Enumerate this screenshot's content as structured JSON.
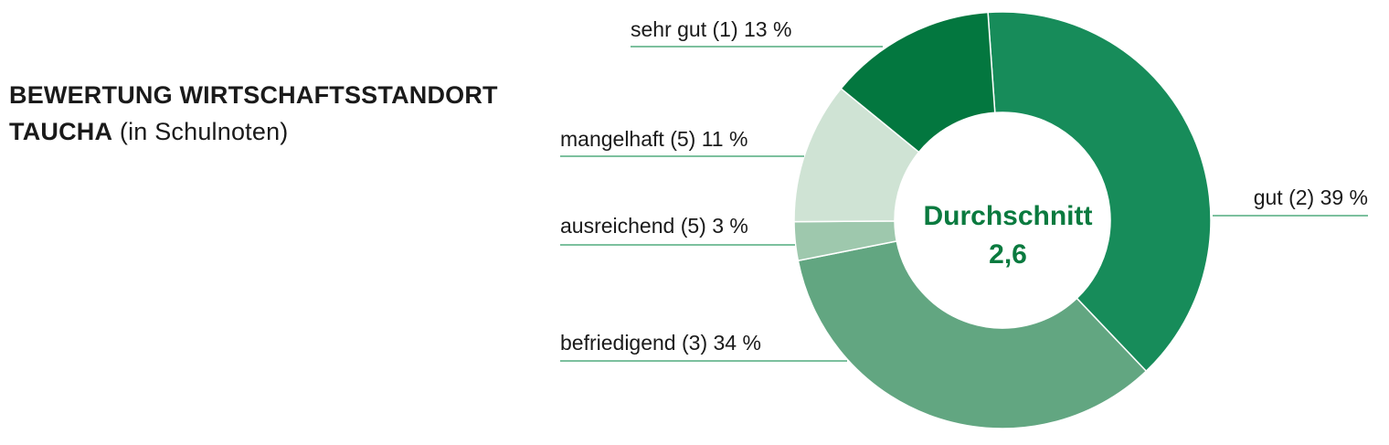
{
  "title": {
    "line1": "BEWERTUNG WIRTSCHAFTSSTANDORT",
    "line2_bold": "TAUCHA",
    "line2_normal": "(in Schulnoten)"
  },
  "center": {
    "label": "Durchschnitt",
    "value": "2,6"
  },
  "chart_data": {
    "type": "pie",
    "title": "BEWERTUNG WIRTSCHAFTSSTANDORT TAUCHA (in Schulnoten)",
    "slices": [
      {
        "label": "gut (2) 39 %",
        "value": 39,
        "color": "#178c5a"
      },
      {
        "label": "befriedigend (3) 34 %",
        "value": 34,
        "color": "#62a681"
      },
      {
        "label": "ausreichend (5) 3 %",
        "value": 3,
        "color": "#9ec8ad"
      },
      {
        "label": "mangelhaft (5) 11 %",
        "value": 11,
        "color": "#cfe3d4"
      },
      {
        "label": "sehr gut (1) 13 %",
        "value": 13,
        "color": "#03773f"
      }
    ],
    "average_label": "Durchschnitt",
    "average_value": "2,6",
    "leader_color": "#2e9a63"
  }
}
